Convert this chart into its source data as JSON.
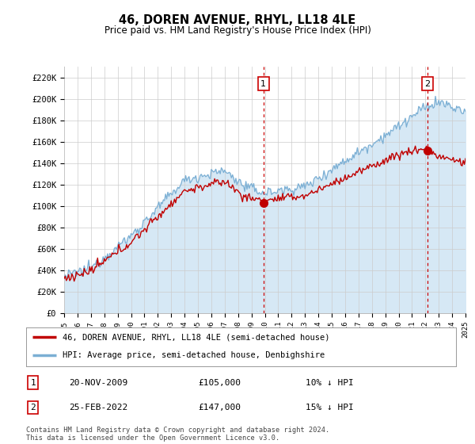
{
  "title": "46, DOREN AVENUE, RHYL, LL18 4LE",
  "subtitle": "Price paid vs. HM Land Registry's House Price Index (HPI)",
  "ylabel_ticks": [
    "£0",
    "£20K",
    "£40K",
    "£60K",
    "£80K",
    "£100K",
    "£120K",
    "£140K",
    "£160K",
    "£180K",
    "£200K",
    "£220K"
  ],
  "ytick_values": [
    0,
    20000,
    40000,
    60000,
    80000,
    100000,
    120000,
    140000,
    160000,
    180000,
    200000,
    220000
  ],
  "ylim": [
    0,
    230000
  ],
  "hpi_color": "#7bafd4",
  "hpi_fill_color": "#d6e8f5",
  "price_color": "#c00000",
  "vline_color": "#cc0000",
  "marker1_date_x": 2009.9,
  "marker2_date_x": 2022.17,
  "marker1_price": 105000,
  "marker2_price": 147000,
  "legend_entry1": "46, DOREN AVENUE, RHYL, LL18 4LE (semi-detached house)",
  "legend_entry2": "HPI: Average price, semi-detached house, Denbighshire",
  "table_row1_num": "1",
  "table_row1_date": "20-NOV-2009",
  "table_row1_price": "£105,000",
  "table_row1_hpi": "10% ↓ HPI",
  "table_row2_num": "2",
  "table_row2_date": "25-FEB-2022",
  "table_row2_price": "£147,000",
  "table_row2_hpi": "15% ↓ HPI",
  "footnote": "Contains HM Land Registry data © Crown copyright and database right 2024.\nThis data is licensed under the Open Government Licence v3.0.",
  "xmin": 1995,
  "xmax": 2025,
  "background_color": "#ffffff",
  "grid_color": "#cccccc"
}
